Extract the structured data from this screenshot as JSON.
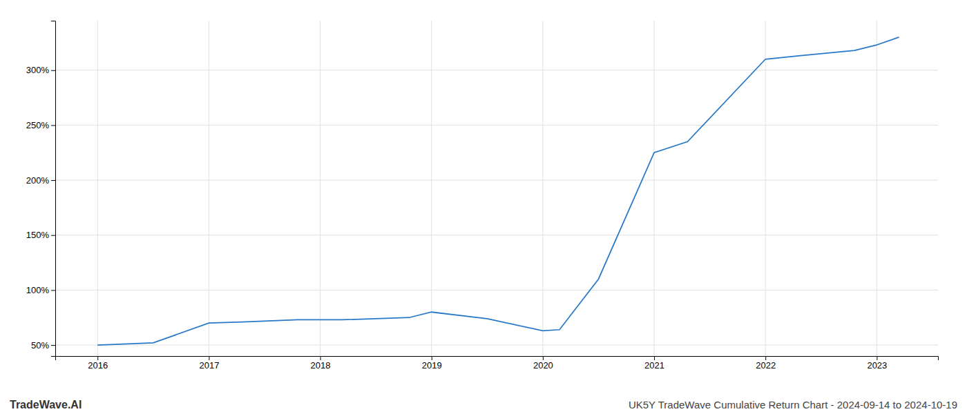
{
  "chart_data": {
    "type": "line",
    "title": "UK5Y TradeWave Cumulative Return Chart - 2024-09-14 to 2024-10-19",
    "annotations": [
      "TradeWave.AI"
    ],
    "x": [
      2016.0,
      2016.5,
      2017.0,
      2017.3,
      2017.8,
      2018.2,
      2018.8,
      2019.0,
      2019.5,
      2020.0,
      2020.15,
      2020.5,
      2021.0,
      2021.3,
      2022.0,
      2022.3,
      2022.8,
      2023.0,
      2023.2
    ],
    "values": [
      50,
      52,
      70,
      71,
      73,
      73,
      75,
      80,
      74,
      63,
      64,
      110,
      225,
      235,
      310,
      313,
      318,
      323,
      330
    ],
    "color": "#2878c8",
    "xlim": [
      2015.62,
      2023.55
    ],
    "ylim": [
      40,
      345
    ],
    "xticks": [
      2016,
      2017,
      2018,
      2019,
      2020,
      2021,
      2022,
      2023
    ],
    "yticks": [
      {
        "value": 50,
        "label": "50%"
      },
      {
        "value": 100,
        "label": "100%"
      },
      {
        "value": 150,
        "label": "150%"
      },
      {
        "value": 200,
        "label": "200%"
      },
      {
        "value": 250,
        "label": "250%"
      },
      {
        "value": 300,
        "label": "300%"
      }
    ],
    "grid": true
  }
}
